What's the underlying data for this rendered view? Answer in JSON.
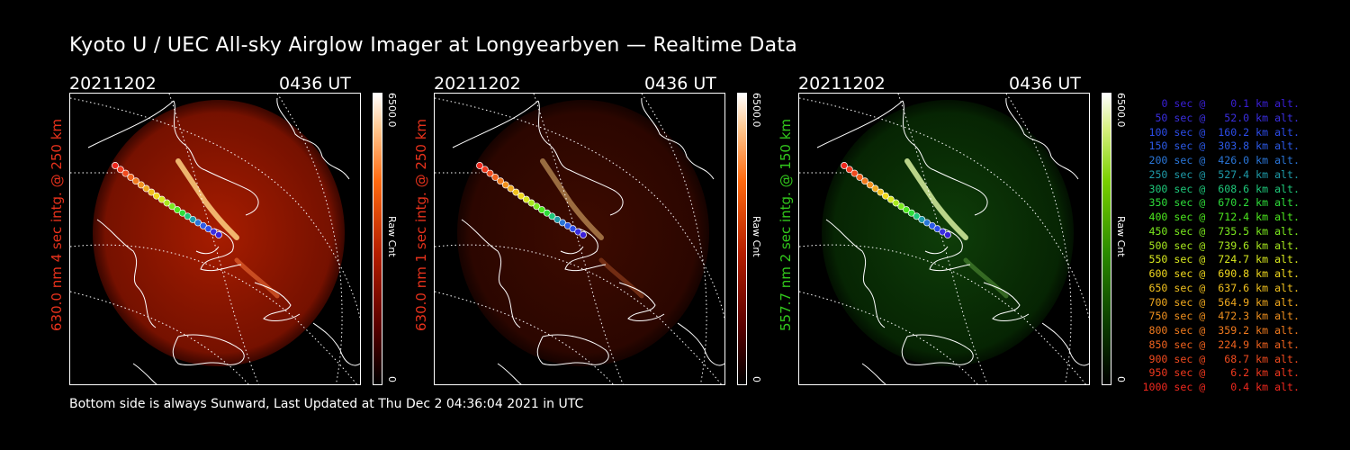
{
  "title": "Kyoto U / UEC All-sky Airglow Imager at Longyearbyen — Realtime Data",
  "footer": "Bottom side is always Sunward, Last Updated at Thu Dec  2 04:36:04 2021 in UTC",
  "colors": {
    "background": "#000000",
    "red_channel": "#e8321c",
    "green_channel": "#32c81c"
  },
  "panels": [
    {
      "date": "20211202",
      "time": "0436 UT",
      "side_label": "630.0 nm 4 sec intg. @ 250 km",
      "side_color": "#e8321c",
      "colorbar_max": "6500.0",
      "colorbar_min": "0",
      "colorbar_label": "Raw Cnt",
      "colormap": "red",
      "intensity": "strong"
    },
    {
      "date": "20211202",
      "time": "0436 UT",
      "side_label": "630.0 nm 1 sec intg. @ 250 km",
      "side_color": "#e8321c",
      "colorbar_max": "6500.0",
      "colorbar_min": "0",
      "colorbar_label": "Raw Cnt",
      "colormap": "red",
      "intensity": "faint"
    },
    {
      "date": "20211202",
      "time": "0436 UT",
      "side_label": "557.7 nm 2 sec intg. @ 150 km",
      "side_color": "#32c81c",
      "colorbar_max": "6500.0",
      "colorbar_min": "0",
      "colorbar_label": "Raw Cnt",
      "colormap": "green",
      "intensity": "medium"
    }
  ],
  "trajectory_legend": [
    {
      "text": "0 sec @    0.1 km alt.",
      "color": "#3a1fd8"
    },
    {
      "text": "50 sec @   52.0 km alt.",
      "color": "#3a2ee0"
    },
    {
      "text": "100 sec @  160.2 km alt.",
      "color": "#2c4ce8"
    },
    {
      "text": "150 sec @  303.8 km alt.",
      "color": "#2c5ae8"
    },
    {
      "text": "200 sec @  426.0 km alt.",
      "color": "#2a76d8"
    },
    {
      "text": "250 sec @  527.4 km alt.",
      "color": "#1e9aa8"
    },
    {
      "text": "300 sec @  608.6 km alt.",
      "color": "#1ec87a"
    },
    {
      "text": "350 sec @  670.2 km alt.",
      "color": "#2edc3a"
    },
    {
      "text": "400 sec @  712.4 km alt.",
      "color": "#4ce81e"
    },
    {
      "text": "450 sec @  735.5 km alt.",
      "color": "#7ae81e"
    },
    {
      "text": "500 sec @  739.6 km alt.",
      "color": "#a8e81e"
    },
    {
      "text": "550 sec @  724.7 km alt.",
      "color": "#d8e81e"
    },
    {
      "text": "600 sec @  690.8 km alt.",
      "color": "#f0d81e"
    },
    {
      "text": "650 sec @  637.6 km alt.",
      "color": "#f0c01e"
    },
    {
      "text": "700 sec @  564.9 km alt.",
      "color": "#f0a81e"
    },
    {
      "text": "750 sec @  472.3 km alt.",
      "color": "#f0901e"
    },
    {
      "text": "800 sec @  359.2 km alt.",
      "color": "#f07a1e"
    },
    {
      "text": "850 sec @  224.9 km alt.",
      "color": "#f0621e"
    },
    {
      "text": "900 sec @   68.7 km alt.",
      "color": "#f04a1e"
    },
    {
      "text": "950 sec @    6.2 km alt.",
      "color": "#f0381e"
    },
    {
      "text": "1000 sec @    0.4 km alt.",
      "color": "#f0281e"
    }
  ]
}
